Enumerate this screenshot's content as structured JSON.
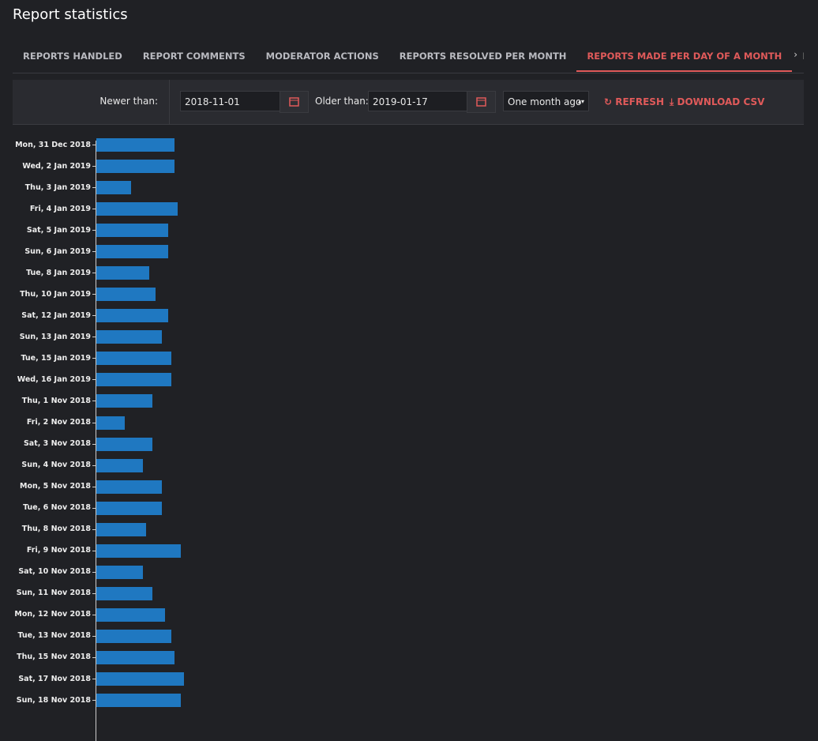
{
  "header": {
    "title": "Report statistics"
  },
  "tabs": [
    {
      "label": "REPORTS HANDLED",
      "active": false
    },
    {
      "label": "REPORT COMMENTS",
      "active": false
    },
    {
      "label": "MODERATOR ACTIONS",
      "active": false
    },
    {
      "label": "REPORTS RESOLVED PER MONTH",
      "active": false
    },
    {
      "label": "REPORTS MADE PER DAY OF A MONTH",
      "active": true
    },
    {
      "label": "REPORTS PE",
      "active": false
    }
  ],
  "filters": {
    "newer_label": "Newer than:",
    "newer_value": "2018-11-01",
    "older_label": "Older than:",
    "older_value": "2019-01-17",
    "range": "One month ago",
    "refresh": "REFRESH",
    "download": "DOWNLOAD CSV"
  },
  "chart_data": {
    "type": "bar",
    "orientation": "horizontal",
    "color": "#1f78c1",
    "categories": [
      "Mon, 31 Dec 2018",
      "Wed, 2 Jan 2019",
      "Thu, 3 Jan 2019",
      "Fri, 4 Jan 2019",
      "Sat, 5 Jan 2019",
      "Sun, 6 Jan 2019",
      "Tue, 8 Jan 2019",
      "Thu, 10 Jan 2019",
      "Sat, 12 Jan 2019",
      "Sun, 13 Jan 2019",
      "Tue, 15 Jan 2019",
      "Wed, 16 Jan 2019",
      "Thu, 1 Nov 2018",
      "Fri, 2 Nov 2018",
      "Sat, 3 Nov 2018",
      "Sun, 4 Nov 2018",
      "Mon, 5 Nov 2018",
      "Tue, 6 Nov 2018",
      "Thu, 8 Nov 2018",
      "Fri, 9 Nov 2018",
      "Sat, 10 Nov 2018",
      "Sun, 11 Nov 2018",
      "Mon, 12 Nov 2018",
      "Tue, 13 Nov 2018",
      "Thu, 15 Nov 2018",
      "Sat, 17 Nov 2018",
      "Sun, 18 Nov 2018"
    ],
    "values": [
      25,
      25,
      11,
      26,
      23,
      23,
      17,
      19,
      23,
      21,
      24,
      24,
      18,
      9,
      18,
      15,
      21,
      21,
      16,
      27,
      15,
      18,
      22,
      24,
      25,
      28,
      27
    ]
  }
}
